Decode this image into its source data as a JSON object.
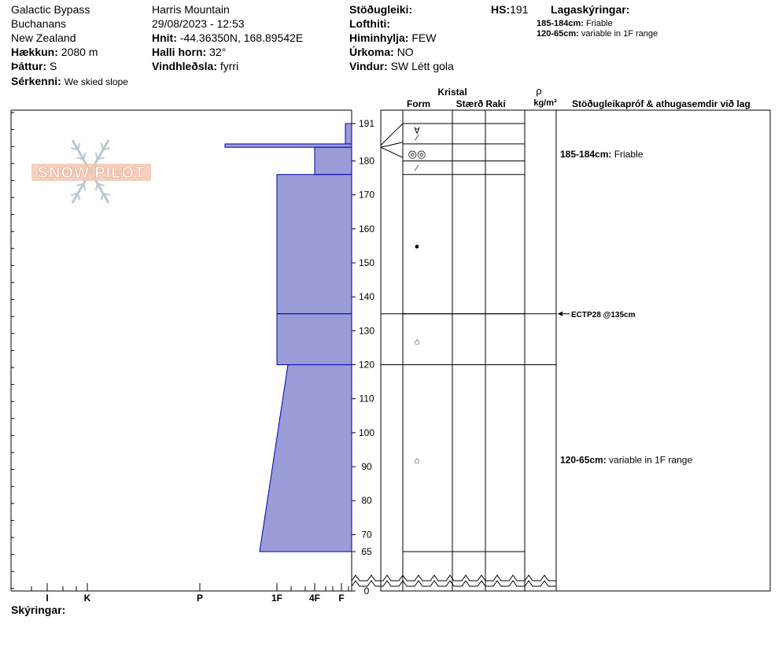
{
  "header": {
    "site": "Galactic Bypass",
    "area": "Buchanans",
    "country": "New Zealand",
    "elevation_label": "Hækkun:",
    "elevation_value": "2080 m",
    "aspect_label": "Þáttur:",
    "aspect_value": "S",
    "features_label": "Sérkenni:",
    "features_value": "We skied slope",
    "range": "Harris Mountain",
    "datetime": "29/08/2023 - 12:53",
    "coords_label": "Hnit:",
    "coords_value": "-44.36350N, 168.89542E",
    "slope_label": "Halli horn:",
    "slope_value": "32°",
    "wind_loading_label": "Vindhleðsla:",
    "wind_loading_value": "fyrri",
    "stability_label": "Stöðugleiki:",
    "air_temp_label": "Lofthiti:",
    "sky_label": "Himinhylja:",
    "sky_value": "FEW",
    "precip_label": "Úrkoma:",
    "precip_value": "NO",
    "wind_label": "Vindur:",
    "wind_value": "SW Létt gola",
    "hs_label": "HS:",
    "hs_value": "191",
    "legend_title": "Lagaskýringar:",
    "legend": [
      {
        "range": "185-184cm:",
        "text": "Friable"
      },
      {
        "range": "120-65cm:",
        "text": "variable in 1F range"
      }
    ]
  },
  "logo_text": "SNOW PILOT",
  "footer": {
    "comments_label": "Skýringar:"
  },
  "colors": {
    "layer_fill": "#9b9bd8",
    "layer_stroke": "#0000aa"
  },
  "chart_data": {
    "type": "snow-profile",
    "y_unit": "cm",
    "y_range": [
      0,
      191
    ],
    "y_ticks": [
      191,
      180,
      170,
      160,
      150,
      140,
      130,
      120,
      110,
      100,
      90,
      80,
      70,
      65,
      0
    ],
    "hardness_scale": [
      "I",
      "K",
      "P",
      "1F",
      "4F",
      "F"
    ],
    "hardness_tick_labels": [
      {
        "label": "I",
        "value": 1
      },
      {
        "label": "K",
        "value": 2
      },
      {
        "label": "P",
        "value": 3
      },
      {
        "label": "1F",
        "value": 4
      },
      {
        "label": "4F",
        "value": 5
      },
      {
        "label": "F",
        "value": 6
      }
    ],
    "layers": [
      {
        "top": 191,
        "bottom": 185,
        "hardness": "F"
      },
      {
        "top": 185,
        "bottom": 184,
        "hardness": "P+"
      },
      {
        "top": 184,
        "bottom": 176,
        "hardness": "4F"
      },
      {
        "top": 176,
        "bottom": 135,
        "hardness": "1F"
      },
      {
        "top": 135,
        "bottom": 120,
        "hardness": "1F"
      },
      {
        "top": 120,
        "bottom": 65,
        "hardness_top": "1F-",
        "hardness_bottom": "1F+"
      }
    ],
    "column_headers": {
      "crystal": "Kristal",
      "form": "Form",
      "size": "Stærð",
      "moisture": "Raki",
      "density_symbol": "ρ",
      "density_unit": "kg/m³",
      "tests": "Stöðugleikapróf & athugasemdir við lag"
    },
    "crystal_symbols": [
      {
        "depth": 189,
        "symbol": "∀"
      },
      {
        "depth": 187,
        "symbol": "⁄"
      },
      {
        "depth": 182,
        "symbol": "◎◎"
      },
      {
        "depth": 178,
        "symbol": "⁄"
      },
      {
        "depth": 155,
        "symbol": "●"
      },
      {
        "depth": 127,
        "symbol": "⌂"
      },
      {
        "depth": 92,
        "symbol": "⌂"
      }
    ],
    "layer_comments": [
      {
        "depth": 182,
        "range": "185-184cm:",
        "text": "Friable"
      },
      {
        "depth": 92,
        "range": "120-65cm:",
        "text": "variable in 1F range"
      }
    ],
    "tests": [
      {
        "depth": 135,
        "label": "ECTP28 @135cm"
      }
    ]
  }
}
